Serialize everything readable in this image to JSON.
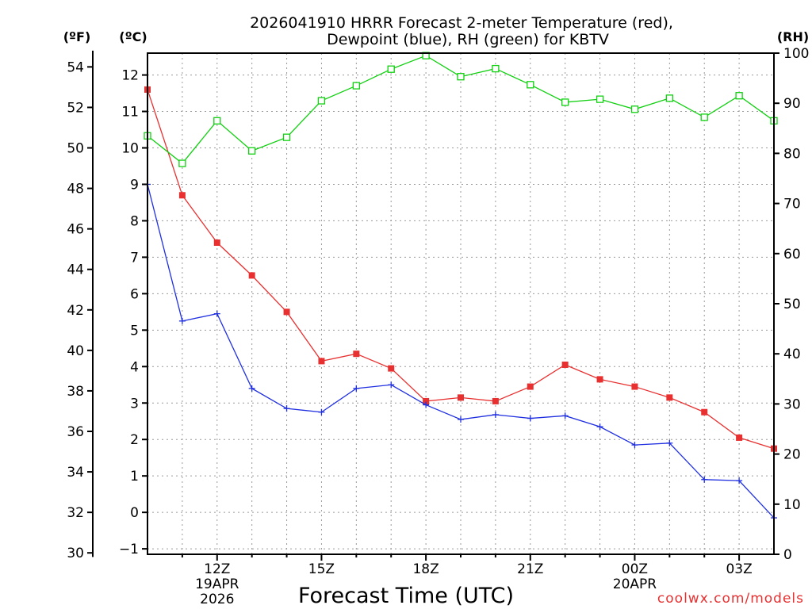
{
  "chart_data": {
    "type": "line",
    "title_line1": "2026041910 HRRR Forecast 2-meter Temperature (red),",
    "title_line2": "Dewpoint (blue), RH (green) for KBTV",
    "xlabel": "Forecast Time (UTC)",
    "units": {
      "f": "(ºF)",
      "c": "(ºC)",
      "rh": "(RH)"
    },
    "x_hours": [
      10,
      11,
      12,
      13,
      14,
      15,
      16,
      17,
      18,
      19,
      20,
      21,
      22,
      23,
      24,
      25,
      26,
      27,
      28
    ],
    "xlim": [
      10,
      28
    ],
    "x_ticks": [
      {
        "hour": 12,
        "label": "12Z",
        "sub1": "19APR",
        "sub2": "2026"
      },
      {
        "hour": 15,
        "label": "15Z",
        "sub1": "",
        "sub2": ""
      },
      {
        "hour": 18,
        "label": "18Z",
        "sub1": "",
        "sub2": ""
      },
      {
        "hour": 21,
        "label": "21Z",
        "sub1": "",
        "sub2": ""
      },
      {
        "hour": 24,
        "label": "00Z",
        "sub1": "20APR",
        "sub2": ""
      },
      {
        "hour": 27,
        "label": "03Z",
        "sub1": "",
        "sub2": ""
      }
    ],
    "axis_c": {
      "min": -1.15,
      "max": 12.6,
      "ticks": [
        -1,
        0,
        1,
        2,
        3,
        4,
        5,
        6,
        7,
        8,
        9,
        10,
        11,
        12
      ]
    },
    "axis_f": {
      "ticks": [
        30,
        32,
        34,
        36,
        38,
        40,
        42,
        44,
        46,
        48,
        50,
        52,
        54
      ]
    },
    "axis_rh": {
      "min": 0,
      "max": 100,
      "ticks": [
        0,
        10,
        20,
        30,
        40,
        50,
        60,
        70,
        80,
        90,
        100
      ]
    },
    "series": [
      {
        "name": "Temperature",
        "unit": "C",
        "color": "#e83030",
        "marker": "filled-square",
        "values": [
          11.6,
          8.7,
          7.4,
          6.5,
          5.5,
          4.15,
          4.35,
          3.95,
          3.05,
          3.15,
          3.05,
          3.45,
          4.05,
          3.65,
          3.45,
          3.15,
          2.75,
          2.05,
          1.75
        ]
      },
      {
        "name": "Dewpoint",
        "unit": "C",
        "color": "#2030e0",
        "marker": "plus",
        "values": [
          9.0,
          5.25,
          5.45,
          3.4,
          2.85,
          2.75,
          3.4,
          3.5,
          2.95,
          2.55,
          2.68,
          2.58,
          2.65,
          2.35,
          1.85,
          1.9,
          0.9,
          0.87,
          -0.15
        ]
      },
      {
        "name": "RH",
        "unit": "%",
        "color": "#10d010",
        "marker": "open-square",
        "values": [
          83.5,
          78.0,
          86.5,
          80.5,
          83.2,
          90.5,
          93.5,
          96.8,
          99.5,
          95.3,
          96.9,
          93.7,
          90.2,
          90.8,
          88.8,
          91.0,
          87.2,
          91.5,
          86.5
        ]
      }
    ]
  },
  "watermark": "coolwx.com/models"
}
